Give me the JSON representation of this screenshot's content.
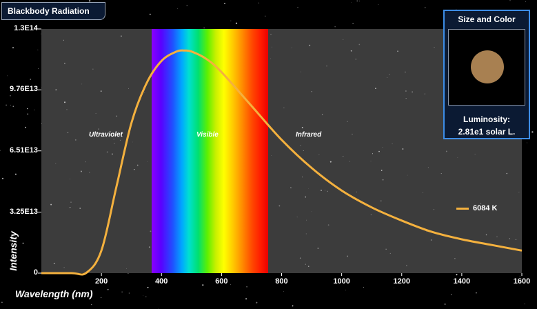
{
  "app": {
    "title": "Blackbody Radiation"
  },
  "panel": {
    "title": "Size and Color",
    "luminosity_label": "Luminosity:",
    "luminosity_value": "2.81e1 solar L.",
    "star_color": "#a88051"
  },
  "regions": {
    "ultraviolet": "Ultraviolet",
    "visible": "Visible",
    "infrared": "Infrared"
  },
  "legend": {
    "label": "6084 K",
    "color": "#f4b13e"
  },
  "chart_data": {
    "type": "line",
    "xlabel": "Wavelength (nm)",
    "ylabel": "Intensity",
    "xlim": [
      0,
      1600
    ],
    "ylim": [
      0,
      130000000000000.0
    ],
    "x_ticks": [
      "200",
      "400",
      "600",
      "800",
      "1000",
      "1200",
      "1400",
      "1600"
    ],
    "y_ticks": [
      "0",
      "3.25E13",
      "6.51E13",
      "9.76E13",
      "1.3E14"
    ],
    "visible_band_nm": [
      370,
      760
    ],
    "series": [
      {
        "name": "6084 K",
        "color": "#f4b13e",
        "x": [
          0,
          100,
          150,
          200,
          250,
          300,
          350,
          400,
          450,
          476,
          500,
          550,
          600,
          700,
          800,
          900,
          1000,
          1100,
          1200,
          1300,
          1400,
          1500,
          1600
        ],
        "y": [
          0,
          0,
          200000000000.0,
          12000000000000.0,
          46000000000000.0,
          80000000000000.0,
          101000000000000.0,
          113000000000000.0,
          118000000000000.0,
          118500000000000.0,
          118000000000000.0,
          114000000000000.0,
          107000000000000.0,
          89000000000000.0,
          71000000000000.0,
          56000000000000.0,
          44000000000000.0,
          35000000000000.0,
          28000000000000.0,
          22000000000000.0,
          18000000000000.0,
          15000000000000.0,
          12000000000000.0
        ]
      }
    ]
  }
}
